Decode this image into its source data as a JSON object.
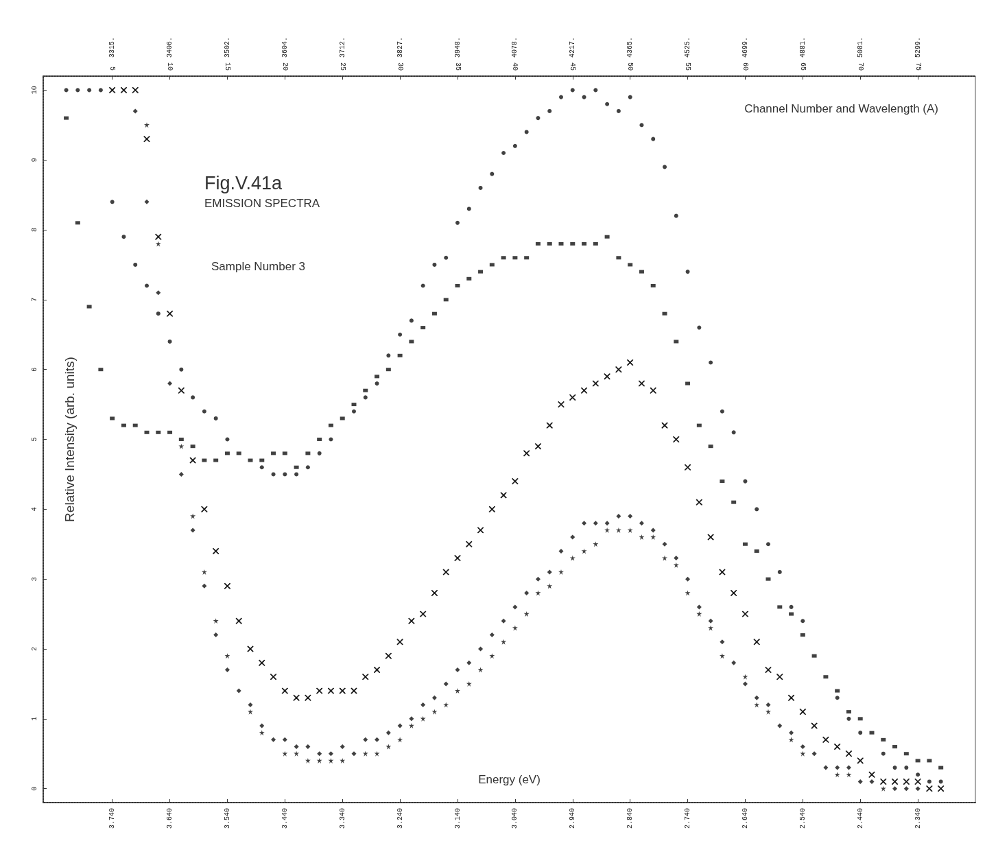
{
  "chart_data": {
    "type": "scatter",
    "title": "Fig.V.41a",
    "subtitle": "EMISSION SPECTRA",
    "annotations": [
      "Sample Number 3",
      "3315.",
      "3406.",
      "3502.",
      "3604.",
      "3712.",
      "3827.",
      "3948.",
      "4078.",
      "4217.",
      "4365.",
      "4525.",
      "4699.",
      "4881.",
      "5081.",
      "5299."
    ],
    "xlabel": "Energy (eV)",
    "ylabel": "Relative Intensity (arb. units)",
    "x2label": "Channel Number and Wavelength (A)",
    "xlim": [
      3.86,
      2.24
    ],
    "xticks": [
      {
        "value": 3.74,
        "label": "3.740"
      },
      {
        "value": 3.64,
        "label": "3.640"
      },
      {
        "value": 3.54,
        "label": "3.540"
      },
      {
        "value": 3.44,
        "label": "3.440"
      },
      {
        "value": 3.34,
        "label": "3.340"
      },
      {
        "value": 3.24,
        "label": "3.240"
      },
      {
        "value": 3.14,
        "label": "3.140"
      },
      {
        "value": 3.04,
        "label": "3.040"
      },
      {
        "value": 2.94,
        "label": "2.940"
      },
      {
        "value": 2.84,
        "label": "2.840"
      },
      {
        "value": 2.74,
        "label": "2.740"
      },
      {
        "value": 2.64,
        "label": "2.640"
      },
      {
        "value": 2.54,
        "label": "2.540"
      },
      {
        "value": 2.44,
        "label": "2.440"
      },
      {
        "value": 2.34,
        "label": "2.340"
      }
    ],
    "x2lim": [
      -1,
      80
    ],
    "x2ticks": [
      5,
      10,
      15,
      20,
      25,
      30,
      35,
      40,
      45,
      50,
      55,
      60,
      65,
      70,
      75
    ],
    "ylim": [
      -0.2,
      10.2
    ],
    "yticks": [
      0,
      1,
      2,
      3,
      4,
      5,
      6,
      7,
      8,
      9,
      10
    ],
    "x": [
      3.82,
      3.8,
      3.78,
      3.76,
      3.74,
      3.72,
      3.7,
      3.68,
      3.66,
      3.64,
      3.62,
      3.6,
      3.58,
      3.56,
      3.54,
      3.52,
      3.5,
      3.48,
      3.46,
      3.44,
      3.42,
      3.4,
      3.38,
      3.36,
      3.34,
      3.32,
      3.3,
      3.28,
      3.26,
      3.24,
      3.22,
      3.2,
      3.18,
      3.16,
      3.14,
      3.12,
      3.1,
      3.08,
      3.06,
      3.04,
      3.02,
      3.0,
      2.98,
      2.96,
      2.94,
      2.92,
      2.9,
      2.88,
      2.86,
      2.84,
      2.82,
      2.8,
      2.78,
      2.76,
      2.74,
      2.72,
      2.7,
      2.68,
      2.66,
      2.64,
      2.62,
      2.6,
      2.58,
      2.56,
      2.54,
      2.52,
      2.5,
      2.48,
      2.46,
      2.44,
      2.42,
      2.4,
      2.38,
      2.36,
      2.34,
      2.32,
      2.3
    ],
    "series": [
      {
        "color": "#111111",
        "marker": "circle",
        "values": [
          10,
          10,
          10,
          10,
          8.4,
          7.9,
          7.5,
          7.2,
          6.8,
          6.4,
          6.0,
          5.6,
          5.4,
          5.3,
          5.0,
          null,
          null,
          4.6,
          4.5,
          4.5,
          4.5,
          4.6,
          4.8,
          5.0,
          null,
          5.4,
          5.6,
          5.8,
          6.2,
          6.5,
          6.7,
          7.2,
          7.5,
          7.6,
          8.1,
          8.3,
          8.6,
          8.8,
          9.1,
          9.2,
          9.4,
          9.6,
          9.7,
          9.9,
          10.0,
          9.9,
          10.0,
          9.8,
          9.7,
          9.9,
          9.5,
          9.3,
          8.9,
          8.2,
          7.4,
          6.6,
          6.1,
          5.4,
          5.1,
          4.4,
          4.0,
          3.5,
          3.1,
          2.6,
          2.4,
          null,
          null,
          1.3,
          1.0,
          0.8,
          null,
          0.5,
          0.3,
          0.3,
          0.2,
          0.1,
          0.1
        ]
      },
      {
        "color": "#111111",
        "marker": "square",
        "values": [
          9.6,
          8.1,
          6.9,
          6.0,
          5.3,
          5.2,
          5.2,
          5.1,
          5.1,
          5.1,
          5.0,
          4.9,
          4.7,
          4.7,
          4.8,
          4.8,
          4.7,
          4.7,
          4.8,
          4.8,
          4.6,
          4.8,
          5.0,
          5.2,
          5.3,
          5.5,
          5.7,
          5.9,
          6.0,
          6.2,
          6.4,
          6.6,
          6.8,
          7.0,
          7.2,
          7.3,
          7.4,
          7.5,
          7.6,
          7.6,
          7.6,
          7.8,
          7.8,
          7.8,
          7.8,
          7.8,
          7.8,
          7.9,
          7.6,
          7.5,
          7.4,
          7.2,
          6.8,
          6.4,
          5.8,
          5.2,
          4.9,
          4.4,
          4.1,
          3.5,
          3.4,
          3.0,
          2.6,
          2.5,
          2.2,
          1.9,
          1.6,
          1.4,
          1.1,
          1.0,
          0.8,
          0.7,
          0.6,
          0.5,
          0.4,
          0.4,
          0.3
        ]
      },
      {
        "color": "#111111",
        "marker": "cross",
        "values": [
          null,
          null,
          null,
          null,
          10,
          10,
          10,
          9.3,
          7.9,
          6.8,
          5.7,
          4.7,
          4.0,
          3.4,
          2.9,
          2.4,
          2.0,
          1.8,
          1.6,
          1.4,
          1.3,
          1.3,
          1.4,
          1.4,
          1.4,
          1.4,
          1.6,
          1.7,
          1.9,
          2.1,
          2.4,
          2.5,
          2.8,
          3.1,
          3.3,
          3.5,
          3.7,
          4.0,
          4.2,
          4.4,
          4.8,
          4.9,
          5.2,
          5.5,
          5.6,
          5.7,
          5.8,
          5.9,
          6.0,
          6.1,
          5.8,
          5.7,
          5.2,
          5.0,
          4.6,
          4.1,
          3.6,
          3.1,
          2.8,
          2.5,
          2.1,
          1.7,
          1.6,
          1.3,
          1.1,
          0.9,
          0.7,
          0.6,
          0.5,
          0.4,
          0.2,
          0.1,
          0.1,
          0.1,
          0.1,
          0.0,
          0.0
        ]
      },
      {
        "color": "#111111",
        "marker": "diamond",
        "values": [
          null,
          null,
          null,
          null,
          null,
          null,
          9.7,
          8.4,
          7.1,
          5.8,
          4.5,
          3.7,
          2.9,
          2.2,
          1.7,
          1.4,
          1.2,
          0.9,
          0.7,
          0.7,
          0.6,
          0.6,
          0.5,
          0.5,
          0.6,
          0.5,
          0.7,
          0.7,
          0.8,
          0.9,
          1.0,
          1.2,
          1.3,
          1.5,
          1.7,
          1.8,
          2.0,
          2.2,
          2.4,
          2.6,
          2.8,
          3.0,
          3.1,
          3.4,
          3.6,
          3.8,
          3.8,
          3.8,
          3.9,
          3.9,
          3.8,
          3.7,
          3.5,
          3.3,
          3.0,
          2.6,
          2.4,
          2.1,
          1.8,
          1.5,
          1.3,
          1.2,
          0.9,
          0.8,
          0.6,
          0.5,
          0.3,
          0.3,
          0.3,
          0.1,
          0.1,
          null,
          0.0,
          0.0,
          0.0,
          null,
          null
        ]
      },
      {
        "color": "#111111",
        "marker": "star",
        "values": [
          null,
          null,
          null,
          null,
          null,
          null,
          null,
          9.5,
          7.8,
          null,
          4.9,
          3.9,
          3.1,
          2.4,
          1.9,
          null,
          1.1,
          0.8,
          null,
          0.5,
          0.5,
          0.4,
          0.4,
          0.4,
          0.4,
          null,
          0.5,
          0.5,
          0.6,
          0.7,
          0.9,
          1.0,
          1.1,
          1.2,
          1.4,
          1.5,
          1.7,
          1.9,
          2.1,
          2.3,
          2.5,
          2.8,
          2.9,
          3.1,
          3.3,
          3.4,
          3.5,
          3.7,
          3.7,
          3.7,
          3.6,
          3.6,
          3.3,
          3.2,
          2.8,
          2.5,
          2.3,
          1.9,
          null,
          1.6,
          1.2,
          1.1,
          null,
          0.7,
          0.5,
          null,
          null,
          0.2,
          0.2,
          null,
          null,
          0.0,
          null,
          null,
          null,
          null,
          null
        ]
      }
    ]
  }
}
